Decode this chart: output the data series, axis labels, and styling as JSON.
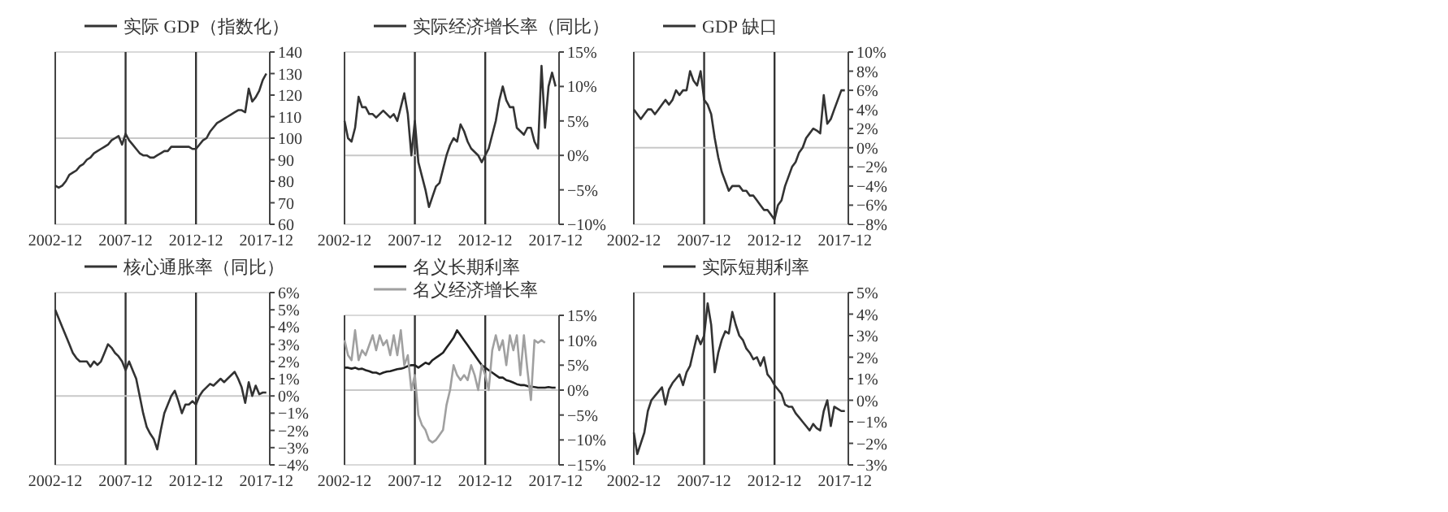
{
  "chart_data": [
    {
      "type": "line",
      "legend": "top",
      "xlim": [
        "2002-12",
        "2018-03"
      ],
      "xticks": [
        {
          "value": "2002-12",
          "label": "2002-12"
        },
        {
          "value": "2007-12",
          "label": "2007-12"
        },
        {
          "value": "2012-12",
          "label": "2012-12"
        },
        {
          "value": "2017-12",
          "label": "2017-12"
        }
      ],
      "ylim": [
        60,
        140
      ],
      "yticks": [
        60,
        70,
        80,
        90,
        100,
        110,
        120,
        130,
        140
      ],
      "ref_lines": [
        {
          "axis": "x",
          "value": "2007-12",
          "color": "#333333"
        },
        {
          "axis": "x",
          "value": "2012-12",
          "color": "#333333"
        },
        {
          "axis": "y",
          "value": 100,
          "color": "#c8c8c8"
        }
      ],
      "x": [
        "2002-12",
        "2003-03",
        "2003-06",
        "2003-09",
        "2003-12",
        "2004-03",
        "2004-06",
        "2004-09",
        "2004-12",
        "2005-03",
        "2005-06",
        "2005-09",
        "2005-12",
        "2006-03",
        "2006-06",
        "2006-09",
        "2006-12",
        "2007-03",
        "2007-06",
        "2007-09",
        "2007-12",
        "2008-03",
        "2008-06",
        "2008-09",
        "2008-12",
        "2009-03",
        "2009-06",
        "2009-09",
        "2009-12",
        "2010-03",
        "2010-06",
        "2010-09",
        "2010-12",
        "2011-03",
        "2011-06",
        "2011-09",
        "2011-12",
        "2012-03",
        "2012-06",
        "2012-09",
        "2012-12",
        "2013-03",
        "2013-06",
        "2013-09",
        "2013-12",
        "2014-03",
        "2014-06",
        "2014-09",
        "2014-12",
        "2015-03",
        "2015-06",
        "2015-09",
        "2015-12",
        "2016-03",
        "2016-06",
        "2016-09",
        "2016-12",
        "2017-03",
        "2017-06",
        "2017-09",
        "2017-12"
      ],
      "series": [
        {
          "name": "实际 GDP（指数化）",
          "color": "#333333",
          "values": [
            78,
            77,
            78,
            80,
            83,
            84,
            85,
            87,
            88,
            90,
            91,
            93,
            94,
            95,
            96,
            97,
            99,
            100,
            101,
            97,
            102,
            99,
            97,
            95,
            93,
            92,
            92,
            91,
            91,
            92,
            93,
            94,
            94,
            96,
            96,
            96,
            96,
            96,
            96,
            95,
            95,
            97,
            99,
            100,
            103,
            105,
            107,
            108,
            109,
            110,
            111,
            112,
            113,
            113,
            112,
            123,
            117,
            119,
            122,
            127,
            130
          ]
        }
      ]
    },
    {
      "type": "line",
      "legend": "top",
      "xlim": [
        "2002-12",
        "2018-03"
      ],
      "xticks": [
        {
          "value": "2002-12",
          "label": "2002-12"
        },
        {
          "value": "2007-12",
          "label": "2007-12"
        },
        {
          "value": "2012-12",
          "label": "2012-12"
        },
        {
          "value": "2017-12",
          "label": "2017-12"
        }
      ],
      "ylim": [
        -10,
        15
      ],
      "yticks": [
        {
          "value": -10,
          "label": "−10%"
        },
        {
          "value": -5,
          "label": "−5%"
        },
        {
          "value": 0,
          "label": "0%"
        },
        {
          "value": 5,
          "label": "5%"
        },
        {
          "value": 10,
          "label": "10%"
        },
        {
          "value": 15,
          "label": "15%"
        }
      ],
      "ref_lines": [
        {
          "axis": "x",
          "value": "2007-12",
          "color": "#333333"
        },
        {
          "axis": "x",
          "value": "2012-12",
          "color": "#333333"
        },
        {
          "axis": "y",
          "value": 0,
          "color": "#c8c8c8"
        }
      ],
      "x": [
        "2002-12",
        "2003-03",
        "2003-06",
        "2003-09",
        "2003-12",
        "2004-03",
        "2004-06",
        "2004-09",
        "2004-12",
        "2005-03",
        "2005-06",
        "2005-09",
        "2005-12",
        "2006-03",
        "2006-06",
        "2006-09",
        "2006-12",
        "2007-03",
        "2007-06",
        "2007-09",
        "2007-12",
        "2008-03",
        "2008-06",
        "2008-09",
        "2008-12",
        "2009-03",
        "2009-06",
        "2009-09",
        "2009-12",
        "2010-03",
        "2010-06",
        "2010-09",
        "2010-12",
        "2011-03",
        "2011-06",
        "2011-09",
        "2011-12",
        "2012-03",
        "2012-06",
        "2012-09",
        "2012-12",
        "2013-03",
        "2013-06",
        "2013-09",
        "2013-12",
        "2014-03",
        "2014-06",
        "2014-09",
        "2014-12",
        "2015-03",
        "2015-06",
        "2015-09",
        "2015-12",
        "2016-03",
        "2016-06",
        "2016-09",
        "2016-12",
        "2017-03",
        "2017-06",
        "2017-09",
        "2017-12"
      ],
      "series": [
        {
          "name": "实际经济增长率（同比）",
          "color": "#333333",
          "values": [
            5,
            2.5,
            2,
            4,
            8.5,
            7,
            7,
            6,
            6,
            5.5,
            6,
            6.5,
            6,
            5.5,
            6,
            5,
            7,
            9,
            6,
            0,
            5,
            -1,
            -3,
            -5,
            -7.5,
            -6,
            -4.5,
            -4,
            -2,
            0,
            1.5,
            2.5,
            2,
            4.5,
            3.5,
            2,
            1,
            0.5,
            0,
            -1,
            0,
            1,
            3,
            5,
            8,
            10,
            8,
            7,
            7,
            4,
            3.5,
            3,
            4,
            4,
            2,
            1,
            13,
            4,
            10,
            12,
            10
          ]
        }
      ]
    },
    {
      "type": "line",
      "legend": "top",
      "xlim": [
        "2002-12",
        "2018-03"
      ],
      "xticks": [
        {
          "value": "2002-12",
          "label": "2002-12"
        },
        {
          "value": "2007-12",
          "label": "2007-12"
        },
        {
          "value": "2012-12",
          "label": "2012-12"
        },
        {
          "value": "2017-12",
          "label": "2017-12"
        }
      ],
      "ylim": [
        -8,
        10
      ],
      "yticks": [
        {
          "value": -8,
          "label": "−8%"
        },
        {
          "value": -6,
          "label": "−6%"
        },
        {
          "value": -4,
          "label": "−4%"
        },
        {
          "value": -2,
          "label": "−2%"
        },
        {
          "value": 0,
          "label": "0%"
        },
        {
          "value": 2,
          "label": "2%"
        },
        {
          "value": 4,
          "label": "4%"
        },
        {
          "value": 6,
          "label": "6%"
        },
        {
          "value": 8,
          "label": "8%"
        },
        {
          "value": 10,
          "label": "10%"
        }
      ],
      "ref_lines": [
        {
          "axis": "x",
          "value": "2007-12",
          "color": "#333333"
        },
        {
          "axis": "x",
          "value": "2012-12",
          "color": "#333333"
        },
        {
          "axis": "y",
          "value": 0,
          "color": "#c8c8c8"
        }
      ],
      "x": [
        "2002-12",
        "2003-03",
        "2003-06",
        "2003-09",
        "2003-12",
        "2004-03",
        "2004-06",
        "2004-09",
        "2004-12",
        "2005-03",
        "2005-06",
        "2005-09",
        "2005-12",
        "2006-03",
        "2006-06",
        "2006-09",
        "2006-12",
        "2007-03",
        "2007-06",
        "2007-09",
        "2007-12",
        "2008-03",
        "2008-06",
        "2008-09",
        "2008-12",
        "2009-03",
        "2009-06",
        "2009-09",
        "2009-12",
        "2010-03",
        "2010-06",
        "2010-09",
        "2010-12",
        "2011-03",
        "2011-06",
        "2011-09",
        "2011-12",
        "2012-03",
        "2012-06",
        "2012-09",
        "2012-12",
        "2013-03",
        "2013-06",
        "2013-09",
        "2013-12",
        "2014-03",
        "2014-06",
        "2014-09",
        "2014-12",
        "2015-03",
        "2015-06",
        "2015-09",
        "2015-12",
        "2016-03",
        "2016-06",
        "2016-09",
        "2016-12",
        "2017-03",
        "2017-06",
        "2017-09",
        "2017-12"
      ],
      "series": [
        {
          "name": "GDP 缺口",
          "color": "#333333",
          "values": [
            4,
            3.5,
            3,
            3.5,
            4,
            4,
            3.5,
            4,
            4.5,
            5,
            4.5,
            5,
            6,
            5.5,
            6,
            6,
            8,
            7,
            6.5,
            8,
            5,
            4.5,
            3.5,
            1,
            -1,
            -2.5,
            -3.5,
            -4.5,
            -4,
            -4,
            -4,
            -4.5,
            -4.5,
            -5,
            -5,
            -5.5,
            -6,
            -6.5,
            -6.5,
            -7,
            -7.5,
            -6,
            -5.5,
            -4,
            -3,
            -2,
            -1.5,
            -0.5,
            0,
            1,
            1.5,
            2,
            1.8,
            1.5,
            5.5,
            2.5,
            3,
            4,
            5,
            6,
            6
          ]
        }
      ]
    },
    {
      "type": "line",
      "legend": "top",
      "xlim": [
        "2002-12",
        "2018-03"
      ],
      "xticks": [
        {
          "value": "2002-12",
          "label": "2002-12"
        },
        {
          "value": "2007-12",
          "label": "2007-12"
        },
        {
          "value": "2012-12",
          "label": "2012-12"
        },
        {
          "value": "2017-12",
          "label": "2017-12"
        }
      ],
      "ylim": [
        -4,
        6
      ],
      "yticks": [
        {
          "value": -4,
          "label": "−4%"
        },
        {
          "value": -3,
          "label": "−3%"
        },
        {
          "value": -2,
          "label": "−2%"
        },
        {
          "value": -1,
          "label": "−1%"
        },
        {
          "value": 0,
          "label": "0%"
        },
        {
          "value": 1,
          "label": "1%"
        },
        {
          "value": 2,
          "label": "2%"
        },
        {
          "value": 3,
          "label": "3%"
        },
        {
          "value": 4,
          "label": "4%"
        },
        {
          "value": 5,
          "label": "5%"
        },
        {
          "value": 6,
          "label": "6%"
        }
      ],
      "ref_lines": [
        {
          "axis": "x",
          "value": "2007-12",
          "color": "#333333"
        },
        {
          "axis": "x",
          "value": "2012-12",
          "color": "#333333"
        },
        {
          "axis": "y",
          "value": 0,
          "color": "#c8c8c8"
        }
      ],
      "x": [
        "2002-12",
        "2003-03",
        "2003-06",
        "2003-09",
        "2003-12",
        "2004-03",
        "2004-06",
        "2004-09",
        "2004-12",
        "2005-03",
        "2005-06",
        "2005-09",
        "2005-12",
        "2006-03",
        "2006-06",
        "2006-09",
        "2006-12",
        "2007-03",
        "2007-06",
        "2007-09",
        "2007-12",
        "2008-03",
        "2008-06",
        "2008-09",
        "2008-12",
        "2009-03",
        "2009-06",
        "2009-09",
        "2009-12",
        "2010-03",
        "2010-06",
        "2010-09",
        "2010-12",
        "2011-03",
        "2011-06",
        "2011-09",
        "2011-12",
        "2012-03",
        "2012-06",
        "2012-09",
        "2012-12",
        "2013-03",
        "2013-06",
        "2013-09",
        "2013-12",
        "2014-03",
        "2014-06",
        "2014-09",
        "2014-12",
        "2015-03",
        "2015-06",
        "2015-09",
        "2015-12",
        "2016-03",
        "2016-06",
        "2016-09",
        "2016-12",
        "2017-03",
        "2017-06",
        "2017-09",
        "2017-12"
      ],
      "series": [
        {
          "name": "核心通胀率（同比）",
          "color": "#333333",
          "values": [
            5,
            4.5,
            4,
            3.5,
            3,
            2.5,
            2.2,
            2,
            2,
            2,
            1.7,
            2,
            1.8,
            2,
            2.5,
            3,
            2.8,
            2.5,
            2.3,
            2,
            1.5,
            2,
            1.5,
            1,
            0,
            -1,
            -1.8,
            -2.2,
            -2.5,
            -3.1,
            -2,
            -1,
            -0.5,
            0,
            0.3,
            -0.3,
            -1,
            -0.5,
            -0.5,
            -0.3,
            -0.5,
            0,
            0.3,
            0.5,
            0.7,
            0.6,
            0.8,
            1,
            0.8,
            1,
            1.2,
            1.4,
            1,
            0.5,
            -0.4,
            0.8,
            0,
            0.6,
            0.1,
            0.2,
            0.2
          ]
        }
      ]
    },
    {
      "type": "line",
      "legend": "top",
      "xlim": [
        "2002-12",
        "2018-03"
      ],
      "xticks": [
        {
          "value": "2002-12",
          "label": "2002-12"
        },
        {
          "value": "2007-12",
          "label": "2007-12"
        },
        {
          "value": "2012-12",
          "label": "2012-12"
        },
        {
          "value": "2017-12",
          "label": "2017-12"
        }
      ],
      "ylim": [
        -15,
        15
      ],
      "yticks": [
        {
          "value": -15,
          "label": "−15%"
        },
        {
          "value": -10,
          "label": "−10%"
        },
        {
          "value": -5,
          "label": "−5%"
        },
        {
          "value": 0,
          "label": "0%"
        },
        {
          "value": 5,
          "label": "5%"
        },
        {
          "value": 10,
          "label": "10%"
        },
        {
          "value": 15,
          "label": "15%"
        }
      ],
      "ref_lines": [
        {
          "axis": "x",
          "value": "2007-12",
          "color": "#333333"
        },
        {
          "axis": "x",
          "value": "2012-12",
          "color": "#333333"
        },
        {
          "axis": "y",
          "value": 0,
          "color": "#c8c8c8"
        }
      ],
      "x": [
        "2002-12",
        "2003-03",
        "2003-06",
        "2003-09",
        "2003-12",
        "2004-03",
        "2004-06",
        "2004-09",
        "2004-12",
        "2005-03",
        "2005-06",
        "2005-09",
        "2005-12",
        "2006-03",
        "2006-06",
        "2006-09",
        "2006-12",
        "2007-03",
        "2007-06",
        "2007-09",
        "2007-12",
        "2008-03",
        "2008-06",
        "2008-09",
        "2008-12",
        "2009-03",
        "2009-06",
        "2009-09",
        "2009-12",
        "2010-03",
        "2010-06",
        "2010-09",
        "2010-12",
        "2011-03",
        "2011-06",
        "2011-09",
        "2011-12",
        "2012-03",
        "2012-06",
        "2012-09",
        "2012-12",
        "2013-03",
        "2013-06",
        "2013-09",
        "2013-12",
        "2014-03",
        "2014-06",
        "2014-09",
        "2014-12",
        "2015-03",
        "2015-06",
        "2015-09",
        "2015-12",
        "2016-03",
        "2016-06",
        "2016-09",
        "2016-12",
        "2017-03",
        "2017-06",
        "2017-09",
        "2017-12"
      ],
      "series": [
        {
          "name": "名义长期利率",
          "color": "#222222",
          "values": [
            4.5,
            4.5,
            4.3,
            4.5,
            4.2,
            4.3,
            4,
            3.8,
            3.5,
            3.5,
            3.2,
            3.5,
            3.7,
            3.8,
            4,
            4.2,
            4.3,
            4.5,
            4.8,
            5,
            5,
            4.5,
            5,
            5.5,
            5.2,
            6,
            6.5,
            7,
            7.5,
            8.5,
            9.5,
            10.5,
            12,
            11,
            10,
            9,
            8,
            7,
            6,
            5,
            4.5,
            4,
            3.5,
            3,
            2.5,
            2.5,
            2,
            1.8,
            1.5,
            1.2,
            1,
            1,
            0.8,
            0.7,
            0.6,
            0.5,
            0.5,
            0.5,
            0.6,
            0.5,
            0.5
          ]
        },
        {
          "name": "名义经济增长率",
          "color": "#a0a0a0",
          "values": [
            10,
            7,
            6,
            12,
            6,
            8,
            7,
            9,
            11,
            8,
            11,
            9,
            10,
            7,
            11,
            7,
            12,
            5,
            7,
            0,
            3,
            -5,
            -7,
            -8,
            -10,
            -10.5,
            -10,
            -9,
            -8,
            -3,
            0,
            5,
            3,
            2,
            3,
            2,
            5,
            3,
            0,
            5,
            3,
            0,
            8,
            11,
            8,
            10,
            5,
            11,
            8,
            11,
            3,
            11,
            4,
            -2,
            10,
            9.5,
            10,
            9.5,
            null,
            null,
            null
          ]
        }
      ]
    },
    {
      "type": "line",
      "legend": "top",
      "xlim": [
        "2002-12",
        "2018-03"
      ],
      "xticks": [
        {
          "value": "2002-12",
          "label": "2002-12"
        },
        {
          "value": "2007-12",
          "label": "2007-12"
        },
        {
          "value": "2012-12",
          "label": "2012-12"
        },
        {
          "value": "2017-12",
          "label": "2017-12"
        }
      ],
      "ylim": [
        -3,
        5
      ],
      "yticks": [
        {
          "value": -3,
          "label": "−3%"
        },
        {
          "value": -2,
          "label": "−2%"
        },
        {
          "value": -1,
          "label": "−1%"
        },
        {
          "value": 0,
          "label": "0%"
        },
        {
          "value": 1,
          "label": "1%"
        },
        {
          "value": 2,
          "label": "2%"
        },
        {
          "value": 3,
          "label": "3%"
        },
        {
          "value": 4,
          "label": "4%"
        },
        {
          "value": 5,
          "label": "5%"
        }
      ],
      "ref_lines": [
        {
          "axis": "x",
          "value": "2007-12",
          "color": "#333333"
        },
        {
          "axis": "x",
          "value": "2012-12",
          "color": "#333333"
        },
        {
          "axis": "y",
          "value": 0,
          "color": "#c8c8c8"
        }
      ],
      "x": [
        "2002-12",
        "2003-03",
        "2003-06",
        "2003-09",
        "2003-12",
        "2004-03",
        "2004-06",
        "2004-09",
        "2004-12",
        "2005-03",
        "2005-06",
        "2005-09",
        "2005-12",
        "2006-03",
        "2006-06",
        "2006-09",
        "2006-12",
        "2007-03",
        "2007-06",
        "2007-09",
        "2007-12",
        "2008-03",
        "2008-06",
        "2008-09",
        "2008-12",
        "2009-03",
        "2009-06",
        "2009-09",
        "2009-12",
        "2010-03",
        "2010-06",
        "2010-09",
        "2010-12",
        "2011-03",
        "2011-06",
        "2011-09",
        "2011-12",
        "2012-03",
        "2012-06",
        "2012-09",
        "2012-12",
        "2013-03",
        "2013-06",
        "2013-09",
        "2013-12",
        "2014-03",
        "2014-06",
        "2014-09",
        "2014-12",
        "2015-03",
        "2015-06",
        "2015-09",
        "2015-12",
        "2016-03",
        "2016-06",
        "2016-09",
        "2016-12",
        "2017-03",
        "2017-06",
        "2017-09",
        "2017-12"
      ],
      "series": [
        {
          "name": "实际短期利率",
          "color": "#333333",
          "values": [
            -1.5,
            -2.5,
            -2,
            -1.5,
            -0.5,
            0,
            0.2,
            0.4,
            0.6,
            -0.2,
            0.5,
            0.8,
            1,
            1.2,
            0.7,
            1.3,
            1.6,
            2.3,
            3,
            2.6,
            3,
            4.5,
            3.5,
            1.3,
            2.2,
            2.8,
            3.2,
            3.1,
            4.1,
            3.5,
            3,
            2.8,
            2.4,
            2.2,
            1.9,
            2,
            1.6,
            2,
            1.2,
            1,
            0.7,
            0.5,
            0.3,
            -0.2,
            -0.3,
            -0.3,
            -0.6,
            -0.8,
            -1,
            -1.2,
            -1.4,
            -1.1,
            -1.3,
            -1.4,
            -0.5,
            0,
            -1.2,
            -0.3,
            -0.4,
            -0.5,
            -0.5
          ]
        }
      ]
    }
  ]
}
